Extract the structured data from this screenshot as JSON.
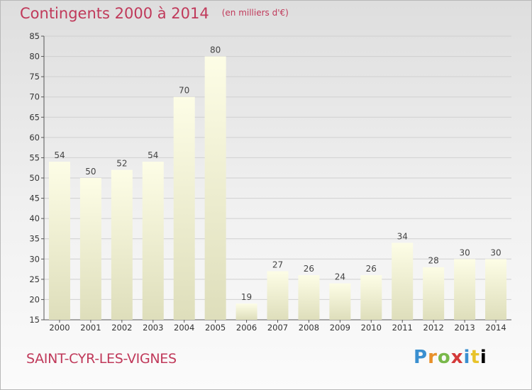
{
  "title": "Contingents 2000 à 2014",
  "unit": "(en milliers d'€)",
  "commune": "SAINT-CYR-LES-VIGNES",
  "logo": {
    "letters": [
      "P",
      "r",
      "o",
      "x",
      "i",
      "t",
      "i"
    ]
  },
  "colors": {
    "title": "#c0395a",
    "bar_top": "#fdfde6",
    "bar_bottom": "#dedebb",
    "gridline": "#d0d0d0"
  },
  "chart_data": {
    "type": "bar",
    "categories": [
      "2000",
      "2001",
      "2002",
      "2003",
      "2004",
      "2005",
      "2006",
      "2007",
      "2008",
      "2009",
      "2010",
      "2011",
      "2012",
      "2013",
      "2014"
    ],
    "values": [
      54,
      50,
      52,
      54,
      70,
      80,
      19,
      27,
      26,
      24,
      26,
      34,
      28,
      30,
      30
    ],
    "ylim": [
      15,
      85
    ],
    "yticks": [
      15,
      20,
      25,
      30,
      35,
      40,
      45,
      50,
      55,
      60,
      65,
      70,
      75,
      80,
      85
    ],
    "grid": true,
    "xlabel": "",
    "ylabel": ""
  }
}
